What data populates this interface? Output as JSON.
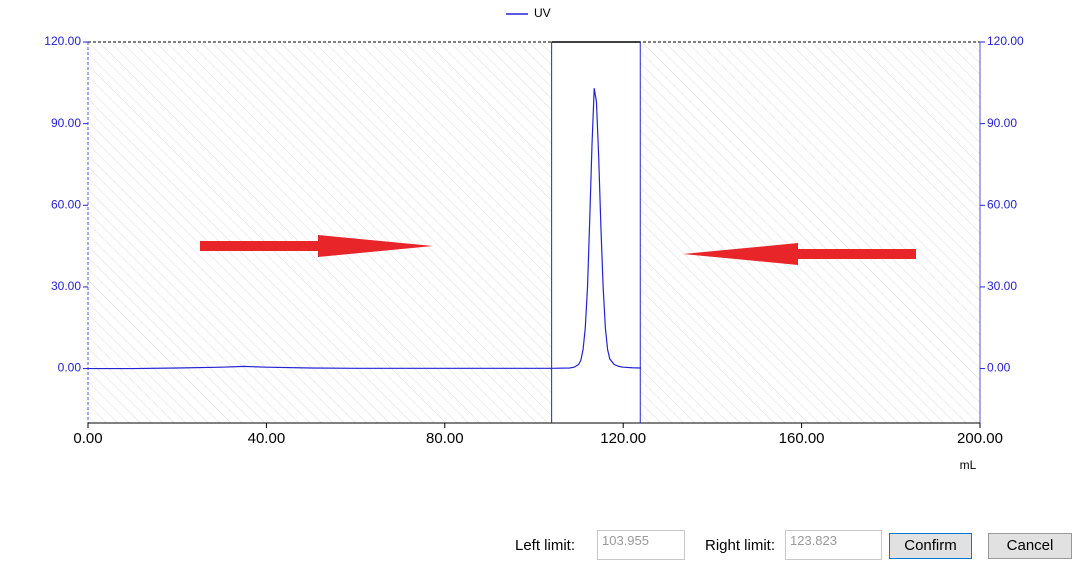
{
  "chart_data": {
    "type": "line",
    "x": [
      0,
      10,
      20,
      30,
      35,
      40,
      50,
      60,
      70,
      80,
      90,
      100,
      104,
      108,
      109,
      110,
      110.5,
      111,
      111.5,
      112,
      112.5,
      113,
      113.5,
      114,
      114.5,
      115,
      115.5,
      116,
      116.5,
      117,
      118,
      119,
      120,
      122,
      124
    ],
    "series": [
      {
        "name": "UV",
        "color": "#2323d4",
        "values": [
          0,
          0,
          0.2,
          0.5,
          0.8,
          0.5,
          0.2,
          0.1,
          0.1,
          0.1,
          0.1,
          0.1,
          0.1,
          0.2,
          0.5,
          1.5,
          3,
          7,
          15,
          30,
          55,
          82,
          103,
          98,
          78,
          52,
          30,
          15,
          7,
          3.5,
          1.5,
          0.8,
          0.5,
          0.3,
          0.2
        ]
      }
    ],
    "xlim": [
      0,
      200
    ],
    "xticks": [
      {
        "value": 0,
        "label": "0.00"
      },
      {
        "value": 40,
        "label": "40.00"
      },
      {
        "value": 80,
        "label": "80.00"
      },
      {
        "value": 120,
        "label": "120.00"
      },
      {
        "value": 160,
        "label": "160.00"
      },
      {
        "value": 200,
        "label": "200.00"
      }
    ],
    "xlabel": "mL",
    "ylim": [
      -20,
      120
    ],
    "yticks": [
      {
        "value": 0,
        "label": "0.00"
      },
      {
        "value": 30,
        "label": "30.00"
      },
      {
        "value": 60,
        "label": "60.00"
      },
      {
        "value": 90,
        "label": "90.00"
      },
      {
        "value": 120,
        "label": "120.00"
      }
    ],
    "y2lim": [
      -20,
      120
    ],
    "y2ticks": [
      {
        "value": 0,
        "label": "0.00"
      },
      {
        "value": 30,
        "label": "30.00"
      },
      {
        "value": 60,
        "label": "60.00"
      },
      {
        "value": 90,
        "label": "90.00"
      },
      {
        "value": 120,
        "label": "120.00"
      }
    ],
    "limits": {
      "left": 103.955,
      "right": 123.823
    }
  },
  "controls": {
    "left_label": "Left limit:",
    "right_label": "Right limit:",
    "confirm": "Confirm",
    "cancel": "Cancel"
  }
}
